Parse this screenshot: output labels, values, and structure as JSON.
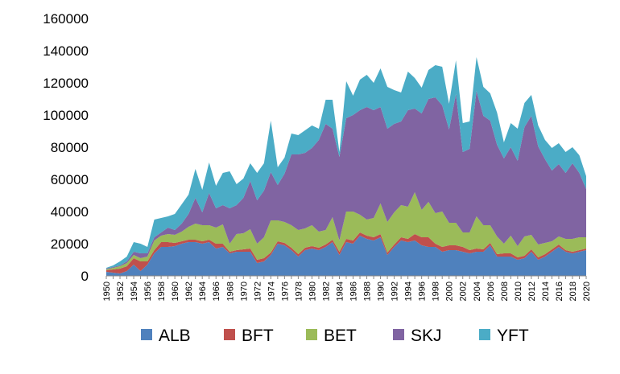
{
  "chart_data": {
    "type": "area",
    "stacked": true,
    "title": "",
    "xlabel": "",
    "ylabel": "",
    "ylim": [
      0,
      160000
    ],
    "yticks": [
      "0",
      "20000",
      "40000",
      "60000",
      "80000",
      "100000",
      "120000",
      "140000",
      "160000"
    ],
    "xtick_labels": [
      "1950",
      "1952",
      "1954",
      "1956",
      "1958",
      "1960",
      "1962",
      "1964",
      "1966",
      "1968",
      "1970",
      "1972",
      "1974",
      "1976",
      "1978",
      "1980",
      "1982",
      "1984",
      "1986",
      "1988",
      "1990",
      "1992",
      "1994",
      "1996",
      "1998",
      "2000",
      "2002",
      "2004",
      "2006",
      "2008",
      "2010",
      "2012",
      "2014",
      "2016",
      "2018",
      "2020"
    ],
    "grid": false,
    "legend_position": "bottom",
    "x": [
      1950,
      1951,
      1952,
      1953,
      1954,
      1955,
      1956,
      1957,
      1958,
      1959,
      1960,
      1961,
      1962,
      1963,
      1964,
      1965,
      1966,
      1967,
      1968,
      1969,
      1970,
      1971,
      1972,
      1973,
      1974,
      1975,
      1976,
      1977,
      1978,
      1979,
      1980,
      1981,
      1982,
      1983,
      1984,
      1985,
      1986,
      1987,
      1988,
      1989,
      1990,
      1991,
      1992,
      1993,
      1994,
      1995,
      1996,
      1997,
      1998,
      1999,
      2000,
      2001,
      2002,
      2003,
      2004,
      2005,
      2006,
      2007,
      2008,
      2009,
      2010,
      2011,
      2012,
      2013,
      2014,
      2015,
      2016,
      2017,
      2018,
      2019,
      2020
    ],
    "series": [
      {
        "name": "ALB",
        "color": "#4f81bd",
        "values": [
          2500,
          2000,
          1500,
          3000,
          7000,
          3000,
          7000,
          14000,
          18000,
          18000,
          18500,
          20000,
          21000,
          21000,
          20000,
          21000,
          17000,
          18000,
          14000,
          15000,
          15000,
          15000,
          8000,
          9000,
          13000,
          20000,
          19000,
          16000,
          12000,
          16000,
          17000,
          16000,
          18000,
          21000,
          13000,
          21000,
          20000,
          25000,
          23000,
          22000,
          24000,
          13000,
          18000,
          22000,
          21000,
          22000,
          19000,
          18000,
          18000,
          15000,
          16000,
          16000,
          15000,
          14000,
          15000,
          15000,
          19000,
          12000,
          12000,
          12000,
          10000,
          11000,
          15000,
          10000,
          12000,
          15000,
          18000,
          15000,
          14000,
          15000,
          16000
        ]
      },
      {
        "name": "BFT",
        "color": "#c0504d",
        "values": [
          1000,
          2000,
          3000,
          3000,
          4000,
          6000,
          2000,
          2000,
          3000,
          3000,
          2000,
          1500,
          1500,
          1500,
          1500,
          1500,
          3000,
          2000,
          1000,
          1000,
          1500,
          2000,
          2000,
          2000,
          1500,
          1500,
          1500,
          1500,
          1500,
          1500,
          1500,
          1500,
          1500,
          1500,
          2000,
          2000,
          2000,
          2000,
          2000,
          2000,
          2000,
          1500,
          1500,
          2000,
          2000,
          4000,
          5000,
          6000,
          2000,
          3000,
          3000,
          3000,
          3000,
          2000,
          2000,
          1500,
          1500,
          1500,
          2000,
          2000,
          1500,
          1500,
          1500,
          1500,
          1500,
          1500,
          1500,
          1000,
          1000,
          1000,
          1000
        ]
      },
      {
        "name": "BET",
        "color": "#9bbb59",
        "values": [
          500,
          1000,
          1500,
          2000,
          2000,
          2000,
          3000,
          6000,
          4000,
          5000,
          5000,
          6000,
          8000,
          10000,
          10000,
          9000,
          10000,
          12000,
          5000,
          10000,
          10000,
          12000,
          10000,
          13000,
          20000,
          13000,
          13000,
          14000,
          15000,
          12000,
          13000,
          10000,
          9000,
          14000,
          7000,
          17000,
          18000,
          11000,
          10000,
          12000,
          19000,
          19000,
          20000,
          20000,
          20000,
          26000,
          17000,
          22000,
          19000,
          22000,
          14000,
          14000,
          9000,
          11000,
          20000,
          15000,
          11000,
          11000,
          6000,
          11000,
          7000,
          12000,
          9000,
          8000,
          7000,
          5000,
          5000,
          7000,
          8000,
          8000,
          7000
        ]
      },
      {
        "name": "SKJ",
        "color": "#8064a2",
        "values": [
          500,
          500,
          500,
          1000,
          2000,
          3000,
          2000,
          2000,
          2000,
          4000,
          3000,
          5000,
          8000,
          16000,
          8000,
          20000,
          12000,
          12000,
          22000,
          18000,
          22000,
          30000,
          27000,
          29000,
          30000,
          22000,
          30000,
          44000,
          47000,
          47000,
          48000,
          57000,
          66000,
          55000,
          52000,
          58000,
          60000,
          65000,
          70000,
          67000,
          60000,
          58000,
          55000,
          52000,
          60000,
          52000,
          60000,
          64000,
          72000,
          66000,
          58000,
          80000,
          50000,
          52000,
          78000,
          68000,
          65000,
          57000,
          53000,
          55000,
          53000,
          68000,
          74000,
          61000,
          52000,
          44000,
          45000,
          41000,
          47000,
          40000,
          30000
        ]
      },
      {
        "name": "YFT",
        "color": "#4bacc6",
        "values": [
          500,
          1000,
          2500,
          3000,
          6000,
          6000,
          4000,
          11000,
          9000,
          7000,
          10000,
          12000,
          12000,
          18000,
          14000,
          19000,
          14000,
          20000,
          23000,
          13000,
          12000,
          11000,
          17000,
          17000,
          32000,
          11000,
          10000,
          13000,
          12000,
          14000,
          14000,
          7000,
          15000,
          18000,
          3000,
          23000,
          12000,
          19000,
          20000,
          17000,
          24000,
          26000,
          21000,
          18000,
          24000,
          19000,
          16000,
          18000,
          20000,
          24000,
          16000,
          21000,
          18000,
          17000,
          21000,
          18000,
          17000,
          20000,
          10000,
          15000,
          20000,
          15000,
          13000,
          13000,
          12000,
          14000,
          13000,
          13000,
          10000,
          11000,
          8000
        ]
      }
    ]
  }
}
